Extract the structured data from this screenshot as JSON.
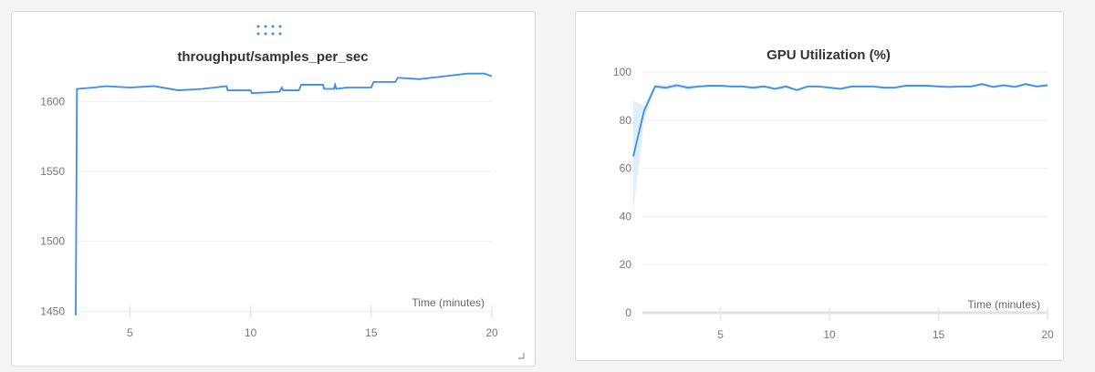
{
  "colors": {
    "line": "#3a8ee6",
    "band": "#d6e6f8",
    "grid": "#eeeeee"
  },
  "panels": [
    {
      "drag_handle_icon": "drag-handle-icon",
      "resize_icon": "resize-corner-icon"
    }
  ],
  "chart_data": [
    {
      "type": "line",
      "title": "throughput/samples_per_sec",
      "xlabel": "Time (minutes)",
      "ylabel": "",
      "xlim": [
        2.75,
        20
      ],
      "ylim": [
        1445,
        1625
      ],
      "xticks": [
        5,
        10,
        15,
        20
      ],
      "yticks": [
        1450,
        1500,
        1550,
        1600
      ],
      "grid": true,
      "series": [
        {
          "x": [
            2.75,
            2.8,
            3.5,
            4,
            5,
            6,
            7,
            8,
            9,
            9.05,
            10,
            10.05,
            11.2,
            11.3,
            11.35,
            12,
            12.1,
            13,
            13.05,
            13.45,
            13.5,
            13.55,
            14,
            15,
            15.1,
            16,
            16.1,
            17,
            18,
            19,
            19.7,
            20
          ],
          "y": [
            1447,
            1609,
            1610,
            1611,
            1610,
            1611,
            1608,
            1609,
            1611,
            1608,
            1608,
            1606,
            1607,
            1610,
            1608,
            1608,
            1612,
            1612,
            1609,
            1609,
            1612,
            1609,
            1610,
            1610,
            1614,
            1614,
            1617,
            1616,
            1618,
            1620,
            1620,
            1618
          ]
        }
      ]
    },
    {
      "type": "area",
      "title": "GPU Utilization (%)",
      "xlabel": "Time (minutes)",
      "ylabel": "",
      "xlim": [
        1,
        20
      ],
      "ylim": [
        0,
        100
      ],
      "xticks": [
        5,
        10,
        15,
        20
      ],
      "yticks": [
        0,
        20,
        40,
        60,
        80,
        100
      ],
      "grid": true,
      "series": [
        {
          "x": [
            1,
            1.5,
            2,
            2.5,
            3,
            3.5,
            4,
            4.5,
            5,
            5.5,
            6,
            6.5,
            7,
            7.5,
            8,
            8.5,
            9,
            9.5,
            10,
            10.5,
            11,
            11.5,
            12,
            12.5,
            13,
            13.5,
            14,
            14.5,
            15,
            15.5,
            16,
            16.5,
            17,
            17.5,
            18,
            18.5,
            19,
            19.5,
            20
          ],
          "y": [
            65,
            84,
            94,
            93.5,
            94.5,
            93.5,
            94,
            94.3,
            94.3,
            94,
            94,
            93.5,
            94,
            93,
            94,
            92.5,
            94,
            94,
            93.5,
            93,
            94,
            94,
            94,
            93.5,
            93.5,
            94.3,
            94.3,
            94.3,
            94,
            93.8,
            94,
            94,
            95,
            93.8,
            94.5,
            93.8,
            95,
            94,
            94.5
          ],
          "band_low": [
            42,
            80,
            93,
            92.5,
            93.5,
            92.5,
            93.5,
            93.8,
            93.8,
            93.5,
            93.5,
            92.8,
            93.5,
            92.3,
            93.5,
            92,
            93.5,
            93.5,
            93,
            92.5,
            93.5,
            93.5,
            93.5,
            93,
            93,
            93.8,
            93.8,
            93.8,
            93.5,
            93.3,
            93.5,
            93.5,
            94.3,
            93.3,
            94,
            93.3,
            94.3,
            93.5,
            94
          ],
          "band_high": [
            88,
            86,
            95,
            94.5,
            95.3,
            94.5,
            94.6,
            94.8,
            94.8,
            94.6,
            94.6,
            94.2,
            94.6,
            93.8,
            94.6,
            93.2,
            94.6,
            94.6,
            94.2,
            93.7,
            94.6,
            94.6,
            94.6,
            94.1,
            94.1,
            94.9,
            94.9,
            94.9,
            94.6,
            94.4,
            94.6,
            94.6,
            95.6,
            94.4,
            95.1,
            94.4,
            95.6,
            94.6,
            95.2
          ]
        }
      ]
    }
  ]
}
